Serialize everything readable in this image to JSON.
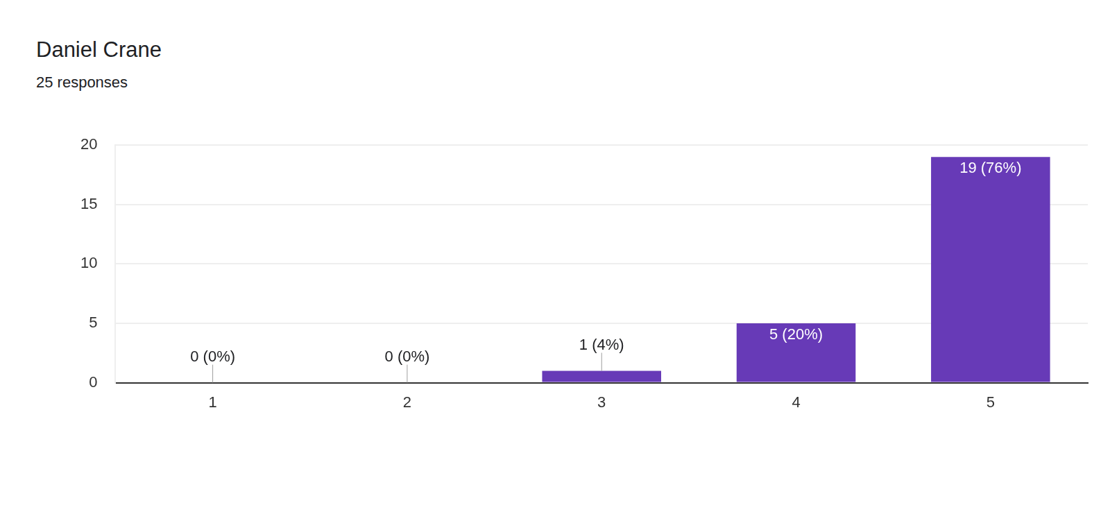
{
  "chart_data": {
    "type": "bar",
    "title": "Daniel Crane",
    "subtitle": "25 responses",
    "categories": [
      "1",
      "2",
      "3",
      "4",
      "5"
    ],
    "values": [
      0,
      0,
      1,
      5,
      19
    ],
    "value_labels": [
      "0 (0%)",
      "0 (0%)",
      "1 (4%)",
      "5 (20%)",
      "19 (76%)"
    ],
    "color": "#673ab7",
    "ylim": [
      0,
      20
    ],
    "yticks": [
      0,
      5,
      10,
      15,
      20
    ],
    "grid": true,
    "data_labels": true
  }
}
